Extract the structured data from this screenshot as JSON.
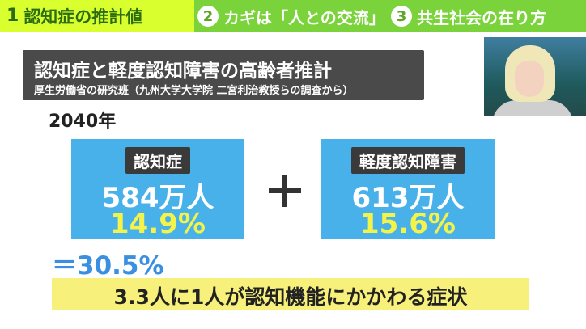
{
  "tabs": [
    {
      "num": "1",
      "label": "認知症の推計値"
    },
    {
      "num": "2",
      "label": "カギは「人との交流」"
    },
    {
      "num": "3",
      "label": "共生社会の在り方"
    }
  ],
  "header": {
    "title": "認知症と軽度認知障害の高齢者推計",
    "subtitle": "厚生労働省の研究班（九州大学大学院 二宮利治教授らの調査から）"
  },
  "year": "2040年",
  "boxes": [
    {
      "label": "認知症",
      "count": "584万人",
      "percent": "14.9%"
    },
    {
      "label": "軽度認知障害",
      "count": "613万人",
      "percent": "15.6%"
    }
  ],
  "total": "＝30.5%",
  "banner": "3.3人に1人が認知機能にかかわる症状",
  "colors": {
    "tab_bar": "#7ad33a",
    "tab_active": "#d9ff2e",
    "box_blue": "#49b1e9",
    "percent_yellow": "#f3f34a",
    "total_blue": "#3a8fe0",
    "banner_yellow": "#f7f07b"
  }
}
